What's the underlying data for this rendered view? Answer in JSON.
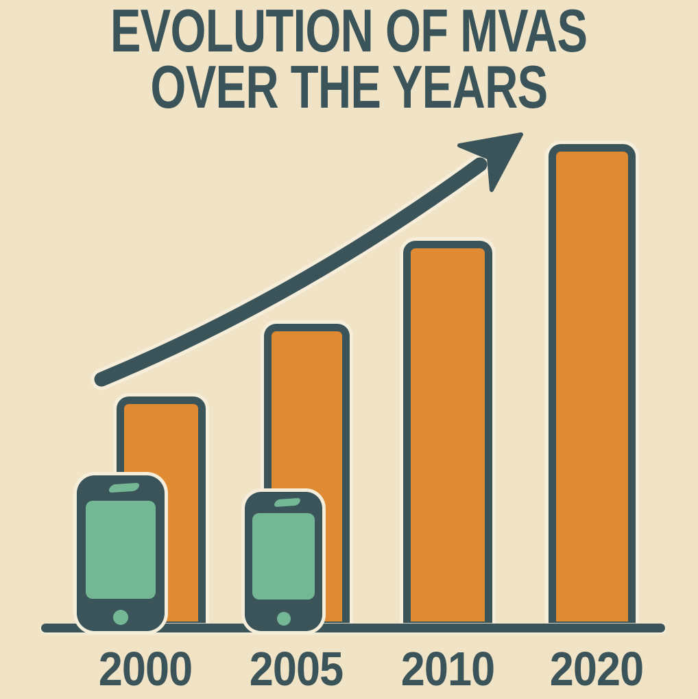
{
  "title": {
    "line1": "EVOLUTION OF MVAS",
    "line2": "OVER THE YEARS"
  },
  "colors": {
    "background": "#F1E4C6",
    "ink": "#3A545A",
    "bar_fill": "#E08A33",
    "phone_screen": "#74B795",
    "halo": "#F6EEDA"
  },
  "chart_data": {
    "type": "bar",
    "title": "EVOLUTION OF MVAS OVER THE YEARS",
    "categories": [
      "2000",
      "2005",
      "2010",
      "2020"
    ],
    "values": [
      48,
      63,
      80,
      100
    ],
    "values_note": "percent of tallest (2020) bar height; no numeric y-axis shown",
    "xlabel": "",
    "ylabel": "",
    "ylim": [
      0,
      100
    ],
    "grid": false,
    "legend": "none",
    "bar_color": "#E08A33",
    "annotations": [
      "upward-curving trend arrow rising from above the 2000 bar toward the 2020 bar",
      "smartphone icon in front of the 2000 bar",
      "smartphone icon in front of the 2005 bar"
    ]
  }
}
